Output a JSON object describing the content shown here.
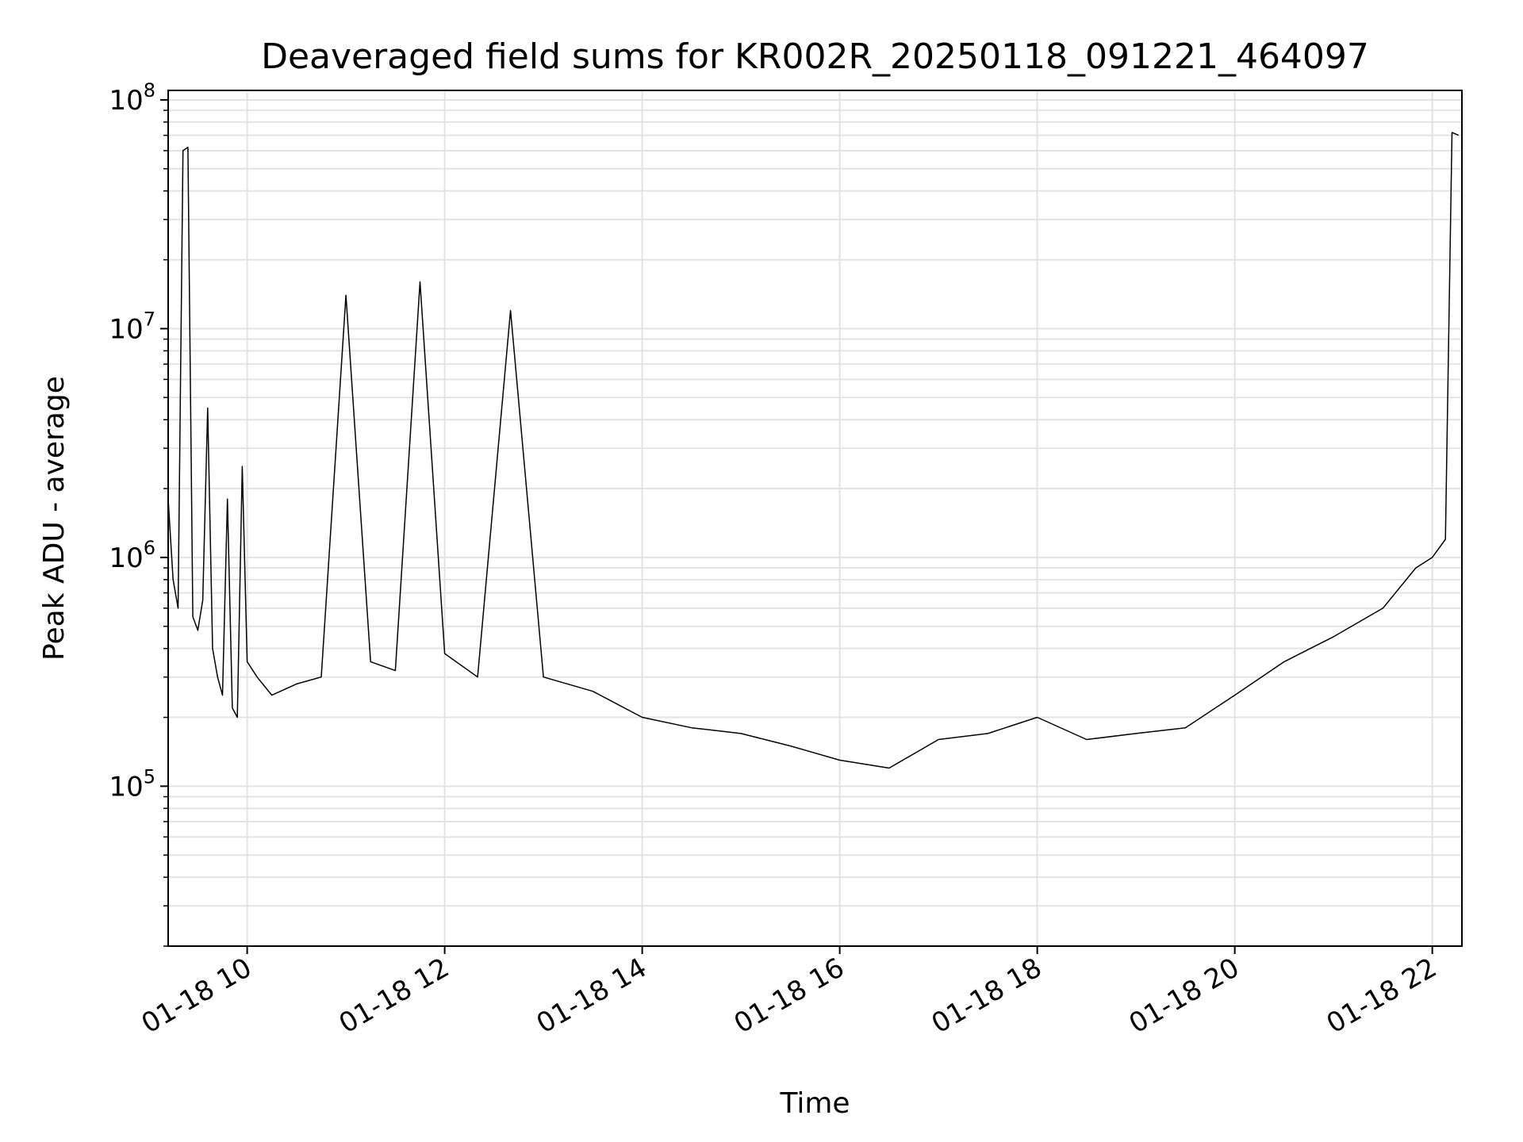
{
  "chart_data": {
    "type": "line",
    "title": "Deaveraged field sums for KR002R_20250118_091221_464097",
    "xlabel": "Time",
    "ylabel": "Peak ADU - average",
    "y_scale": "log",
    "ylim": [
      20000,
      110000000
    ],
    "xlim": [
      "01-18 09:12",
      "01-18 22:18"
    ],
    "grid": true,
    "line_color": "#000000",
    "x_ticks": [
      "01-18 10",
      "01-18 12",
      "01-18 14",
      "01-18 16",
      "01-18 18",
      "01-18 20",
      "01-18 22"
    ],
    "x_tick_values": [
      "01-18 10:00",
      "01-18 12:00",
      "01-18 14:00",
      "01-18 16:00",
      "01-18 18:00",
      "01-18 20:00",
      "01-18 22:00"
    ],
    "y_ticks": [
      {
        "value": 100000,
        "base": "10",
        "exp": "5"
      },
      {
        "value": 1000000,
        "base": "10",
        "exp": "6"
      },
      {
        "value": 10000000,
        "base": "10",
        "exp": "7"
      },
      {
        "value": 100000000,
        "base": "10",
        "exp": "8"
      }
    ],
    "series": [
      {
        "x": [
          "01-18 09:12",
          "01-18 09:15",
          "01-18 09:18",
          "01-18 09:21",
          "01-18 09:24",
          "01-18 09:27",
          "01-18 09:30",
          "01-18 09:33",
          "01-18 09:36",
          "01-18 09:39",
          "01-18 09:42",
          "01-18 09:45",
          "01-18 09:48",
          "01-18 09:51",
          "01-18 09:54",
          "01-18 09:57",
          "01-18 10:00",
          "01-18 10:06",
          "01-18 10:15",
          "01-18 10:30",
          "01-18 10:45",
          "01-18 11:00",
          "01-18 11:15",
          "01-18 11:30",
          "01-18 11:45",
          "01-18 12:00",
          "01-18 12:20",
          "01-18 12:40",
          "01-18 13:00",
          "01-18 13:30",
          "01-18 14:00",
          "01-18 14:30",
          "01-18 15:00",
          "01-18 15:30",
          "01-18 16:00",
          "01-18 16:30",
          "01-18 17:00",
          "01-18 17:30",
          "01-18 18:00",
          "01-18 18:30",
          "01-18 19:00",
          "01-18 19:30",
          "01-18 20:00",
          "01-18 20:30",
          "01-18 21:00",
          "01-18 21:30",
          "01-18 21:50",
          "01-18 22:00",
          "01-18 22:08",
          "01-18 22:12",
          "01-18 22:16"
        ],
        "y": [
          1800000,
          800000,
          600000,
          60000000,
          62000000,
          550000,
          480000,
          650000,
          4500000,
          400000,
          300000,
          250000,
          1800000,
          220000,
          200000,
          2500000,
          350000,
          300000,
          250000,
          280000,
          300000,
          14000000,
          350000,
          320000,
          16000000,
          380000,
          300000,
          12000000,
          300000,
          260000,
          200000,
          180000,
          170000,
          150000,
          130000,
          120000,
          160000,
          170000,
          200000,
          160000,
          170000,
          180000,
          250000,
          350000,
          450000,
          600000,
          900000,
          1000000,
          1200000,
          72000000,
          70000000
        ]
      }
    ]
  }
}
